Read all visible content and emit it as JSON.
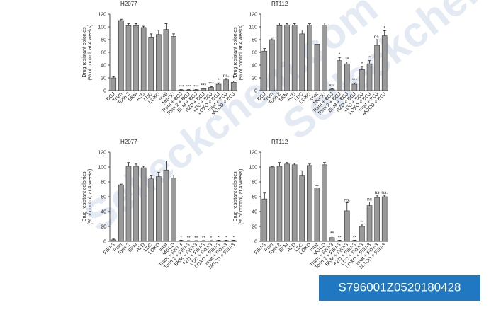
{
  "watermark": "Selleckchem.com",
  "badge": "S796001Z0520180428",
  "chart_data": [
    {
      "type": "bar",
      "title": "H2077",
      "ylabel": [
        "Drug resistant colonies",
        "(% of control, at 4 weeks)"
      ],
      "categories": [
        "BGJ",
        "Tram",
        "Torin 2",
        "BKM",
        "AZD",
        "LDC",
        "LOXO",
        "Imat",
        "MGCD",
        "Tram + BGJ",
        "Torin 2 + BGJ",
        "BKM + BGJ",
        "AZD + BGJ",
        "LDC + BGJ",
        "LOXO + BGJ",
        "Imat + BGJ",
        "MGCD + BGJ"
      ],
      "values": [
        20,
        110,
        102,
        102,
        99,
        84,
        88,
        96,
        85,
        1,
        1,
        1,
        3,
        5,
        10,
        17,
        13
      ],
      "errors": [
        2,
        2,
        3,
        3,
        2,
        5,
        7,
        9,
        4,
        0.5,
        0.5,
        0.5,
        1,
        1,
        2,
        2,
        2
      ],
      "annotations": [
        null,
        null,
        null,
        null,
        null,
        null,
        null,
        null,
        null,
        "***",
        "***",
        "***",
        "***",
        "***",
        "*",
        "ns.",
        "*"
      ],
      "color": "#9a9a9a",
      "ylim": [
        0,
        120
      ],
      "yticks": [
        0,
        20,
        40,
        60,
        80,
        100,
        120
      ]
    },
    {
      "type": "bar",
      "title": "RT112",
      "ylabel": [
        "Drug resistant colonies",
        "(% of control, at 4 weeks)"
      ],
      "categories": [
        "BGJ",
        "Tram",
        "Torin 2",
        "BKM",
        "AZD",
        "LDC",
        "LOXO",
        "Imat",
        "MGCD",
        "Tram + BGJ",
        "Torin 2 + BGJ",
        "BKM + BGJ",
        "AZD + BGJ",
        "LDC + BGJ",
        "LOXO + BGJ",
        "Imat + BGJ",
        "MGCD + BGJ"
      ],
      "values": [
        62,
        80,
        102,
        103,
        103,
        89,
        103,
        73,
        103,
        2,
        47,
        42,
        10,
        33,
        42,
        71,
        86
      ],
      "errors": [
        4,
        3,
        4,
        2,
        2,
        6,
        2,
        3,
        3,
        1,
        5,
        3,
        2,
        5,
        5,
        9,
        8
      ],
      "annotations": [
        null,
        null,
        null,
        null,
        null,
        null,
        null,
        null,
        null,
        "***",
        "*",
        "**",
        "***",
        "*",
        "*",
        "ns.",
        "*"
      ],
      "color": "#9a9a9a",
      "ylim": [
        0,
        120
      ],
      "yticks": [
        0,
        20,
        40,
        60,
        80,
        100,
        120
      ]
    },
    {
      "type": "bar",
      "title": "H2077",
      "ylabel": [
        "Drug resistant colonies",
        "(% of control, at 4 weeks)"
      ],
      "categories": [
        "FIIN-3",
        "Tram",
        "Torin 2",
        "BKM",
        "AZD",
        "LDC",
        "LOXO",
        "Imat",
        "MGCD",
        "Tram + FIIN-3",
        "Torin 2 + FIIN-3",
        "BKM + FIIN-3",
        "AZD + FIIN-3",
        "LDC + FIIN-3",
        "LOXO + FIIN-3",
        "Imat + FIIN-3",
        "MGCD + FIIN-3"
      ],
      "values": [
        2,
        76,
        101,
        101,
        99,
        84,
        87,
        96,
        85,
        1,
        0.5,
        0.5,
        0.5,
        0.5,
        1,
        1,
        1
      ],
      "errors": [
        1,
        1,
        5,
        3,
        2,
        4,
        6,
        12,
        4,
        0.5,
        0.5,
        0.5,
        0.5,
        0.5,
        0.5,
        0.5,
        0.5
      ],
      "annotations": [
        null,
        null,
        null,
        null,
        null,
        null,
        null,
        null,
        null,
        "*",
        "**",
        "**",
        "**",
        "*",
        "*",
        "*",
        "*"
      ],
      "color": "#9a9a9a",
      "ylim": [
        0,
        120
      ],
      "yticks": [
        0,
        20,
        40,
        60,
        80,
        100,
        120
      ]
    },
    {
      "type": "bar",
      "title": "RT112",
      "ylabel": [
        "Drug resistant colonies",
        "(% of control, at 4 weeks)"
      ],
      "categories": [
        "FIIN-3",
        "Tram",
        "Torin 2",
        "BKM",
        "AZD",
        "LDC",
        "LOXO",
        "Imat",
        "MGCD",
        "Tram + FIIN-3",
        "Torin 2 + FIIN-3",
        "BKM + FIIN-3",
        "AZD + FIIN-3",
        "LDC + FIIN-3",
        "LOXO + FIIN-3",
        "Imat + FIIN-3",
        "MGCD + FIIN-3"
      ],
      "values": [
        57,
        100,
        101,
        104,
        103,
        88,
        102,
        72,
        103,
        5,
        1,
        41,
        1,
        20,
        48,
        59,
        60
      ],
      "errors": [
        8,
        1,
        5,
        2,
        2,
        7,
        2,
        3,
        3,
        2,
        0.5,
        11,
        0.5,
        2,
        5,
        3,
        2
      ],
      "annotations": [
        null,
        null,
        null,
        null,
        null,
        null,
        null,
        null,
        null,
        "**",
        "**",
        "ns.",
        "**",
        "**",
        "ns",
        "ns",
        "ns."
      ],
      "color": "#9a9a9a",
      "ylim": [
        0,
        120
      ],
      "yticks": [
        0,
        20,
        40,
        60,
        80,
        100,
        120
      ]
    }
  ]
}
